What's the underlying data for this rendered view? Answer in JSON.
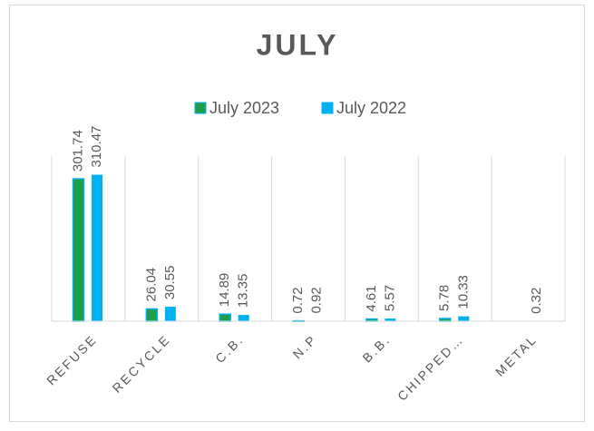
{
  "chart_data": {
    "type": "bar",
    "title": "JULY",
    "categories": [
      "REFUSE",
      "RECYCLE",
      "C.B.",
      "N.P",
      "B.B.",
      "CHIPPED…",
      "METAL"
    ],
    "series": [
      {
        "name": "July 2023",
        "color": "#1e9e48",
        "values": [
          301.74,
          26.04,
          14.89,
          0.72,
          4.61,
          5.78,
          null
        ]
      },
      {
        "name": "July 2022",
        "color": "#00b0f0",
        "values": [
          310.47,
          30.55,
          13.35,
          0.92,
          5.57,
          10.33,
          0.32
        ]
      }
    ],
    "ylim": [
      0,
      350
    ],
    "legend": "top"
  }
}
